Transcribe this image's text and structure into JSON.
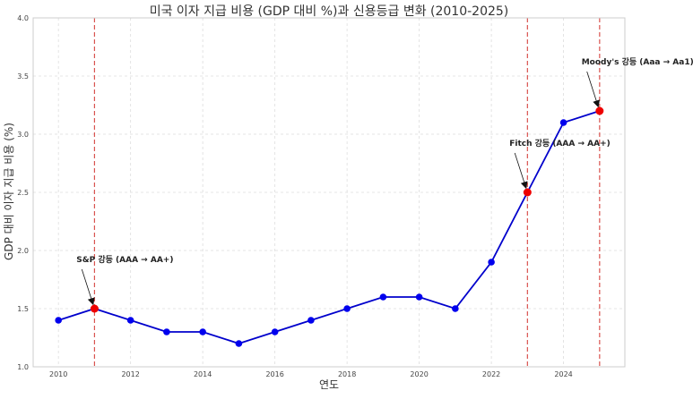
{
  "chart_data": {
    "type": "line",
    "title": "미국 이자 지급 비용 (GDP 대비 %)과 신용등급 변화 (2010-2025)",
    "xlabel": "연도",
    "ylabel": "GDP 대비 이자 지급 비용 (%)",
    "xlim": [
      2009.3,
      2025.7
    ],
    "ylim": [
      1.0,
      4.0
    ],
    "xticks": [
      2010,
      2012,
      2014,
      2016,
      2018,
      2020,
      2022,
      2024
    ],
    "yticks": [
      1.0,
      1.5,
      2.0,
      2.5,
      3.0,
      3.5,
      4.0
    ],
    "grid": true,
    "x": [
      2010,
      2011,
      2012,
      2013,
      2014,
      2015,
      2016,
      2017,
      2018,
      2019,
      2020,
      2021,
      2022,
      2023,
      2024,
      2025
    ],
    "series": [
      {
        "values": [
          1.4,
          1.5,
          1.4,
          1.3,
          1.3,
          1.2,
          1.3,
          1.4,
          1.5,
          1.6,
          1.6,
          1.5,
          1.9,
          2.5,
          3.1,
          3.2
        ]
      }
    ],
    "highlight_years": [
      2011,
      2023,
      2025
    ],
    "annotations": [
      {
        "text": "S&P 강등 (AAA → AA+)",
        "x": 2011,
        "y": 1.5,
        "text_x": 2010.5,
        "text_y": 1.9
      },
      {
        "text": "Fitch 강등 (AAA → AA+)",
        "x": 2023,
        "y": 2.5,
        "text_x": 2022.5,
        "text_y": 2.9
      },
      {
        "text": "Moody's 강등 (Aaa → Aa1)",
        "x": 2025,
        "y": 3.2,
        "text_x": 2024.5,
        "text_y": 3.6
      }
    ],
    "colors": {
      "line": "#0000cc",
      "marker": "#0000ee",
      "highlight": "#ee0000",
      "vline": "#d9534f",
      "grid": "#dddddd"
    }
  }
}
